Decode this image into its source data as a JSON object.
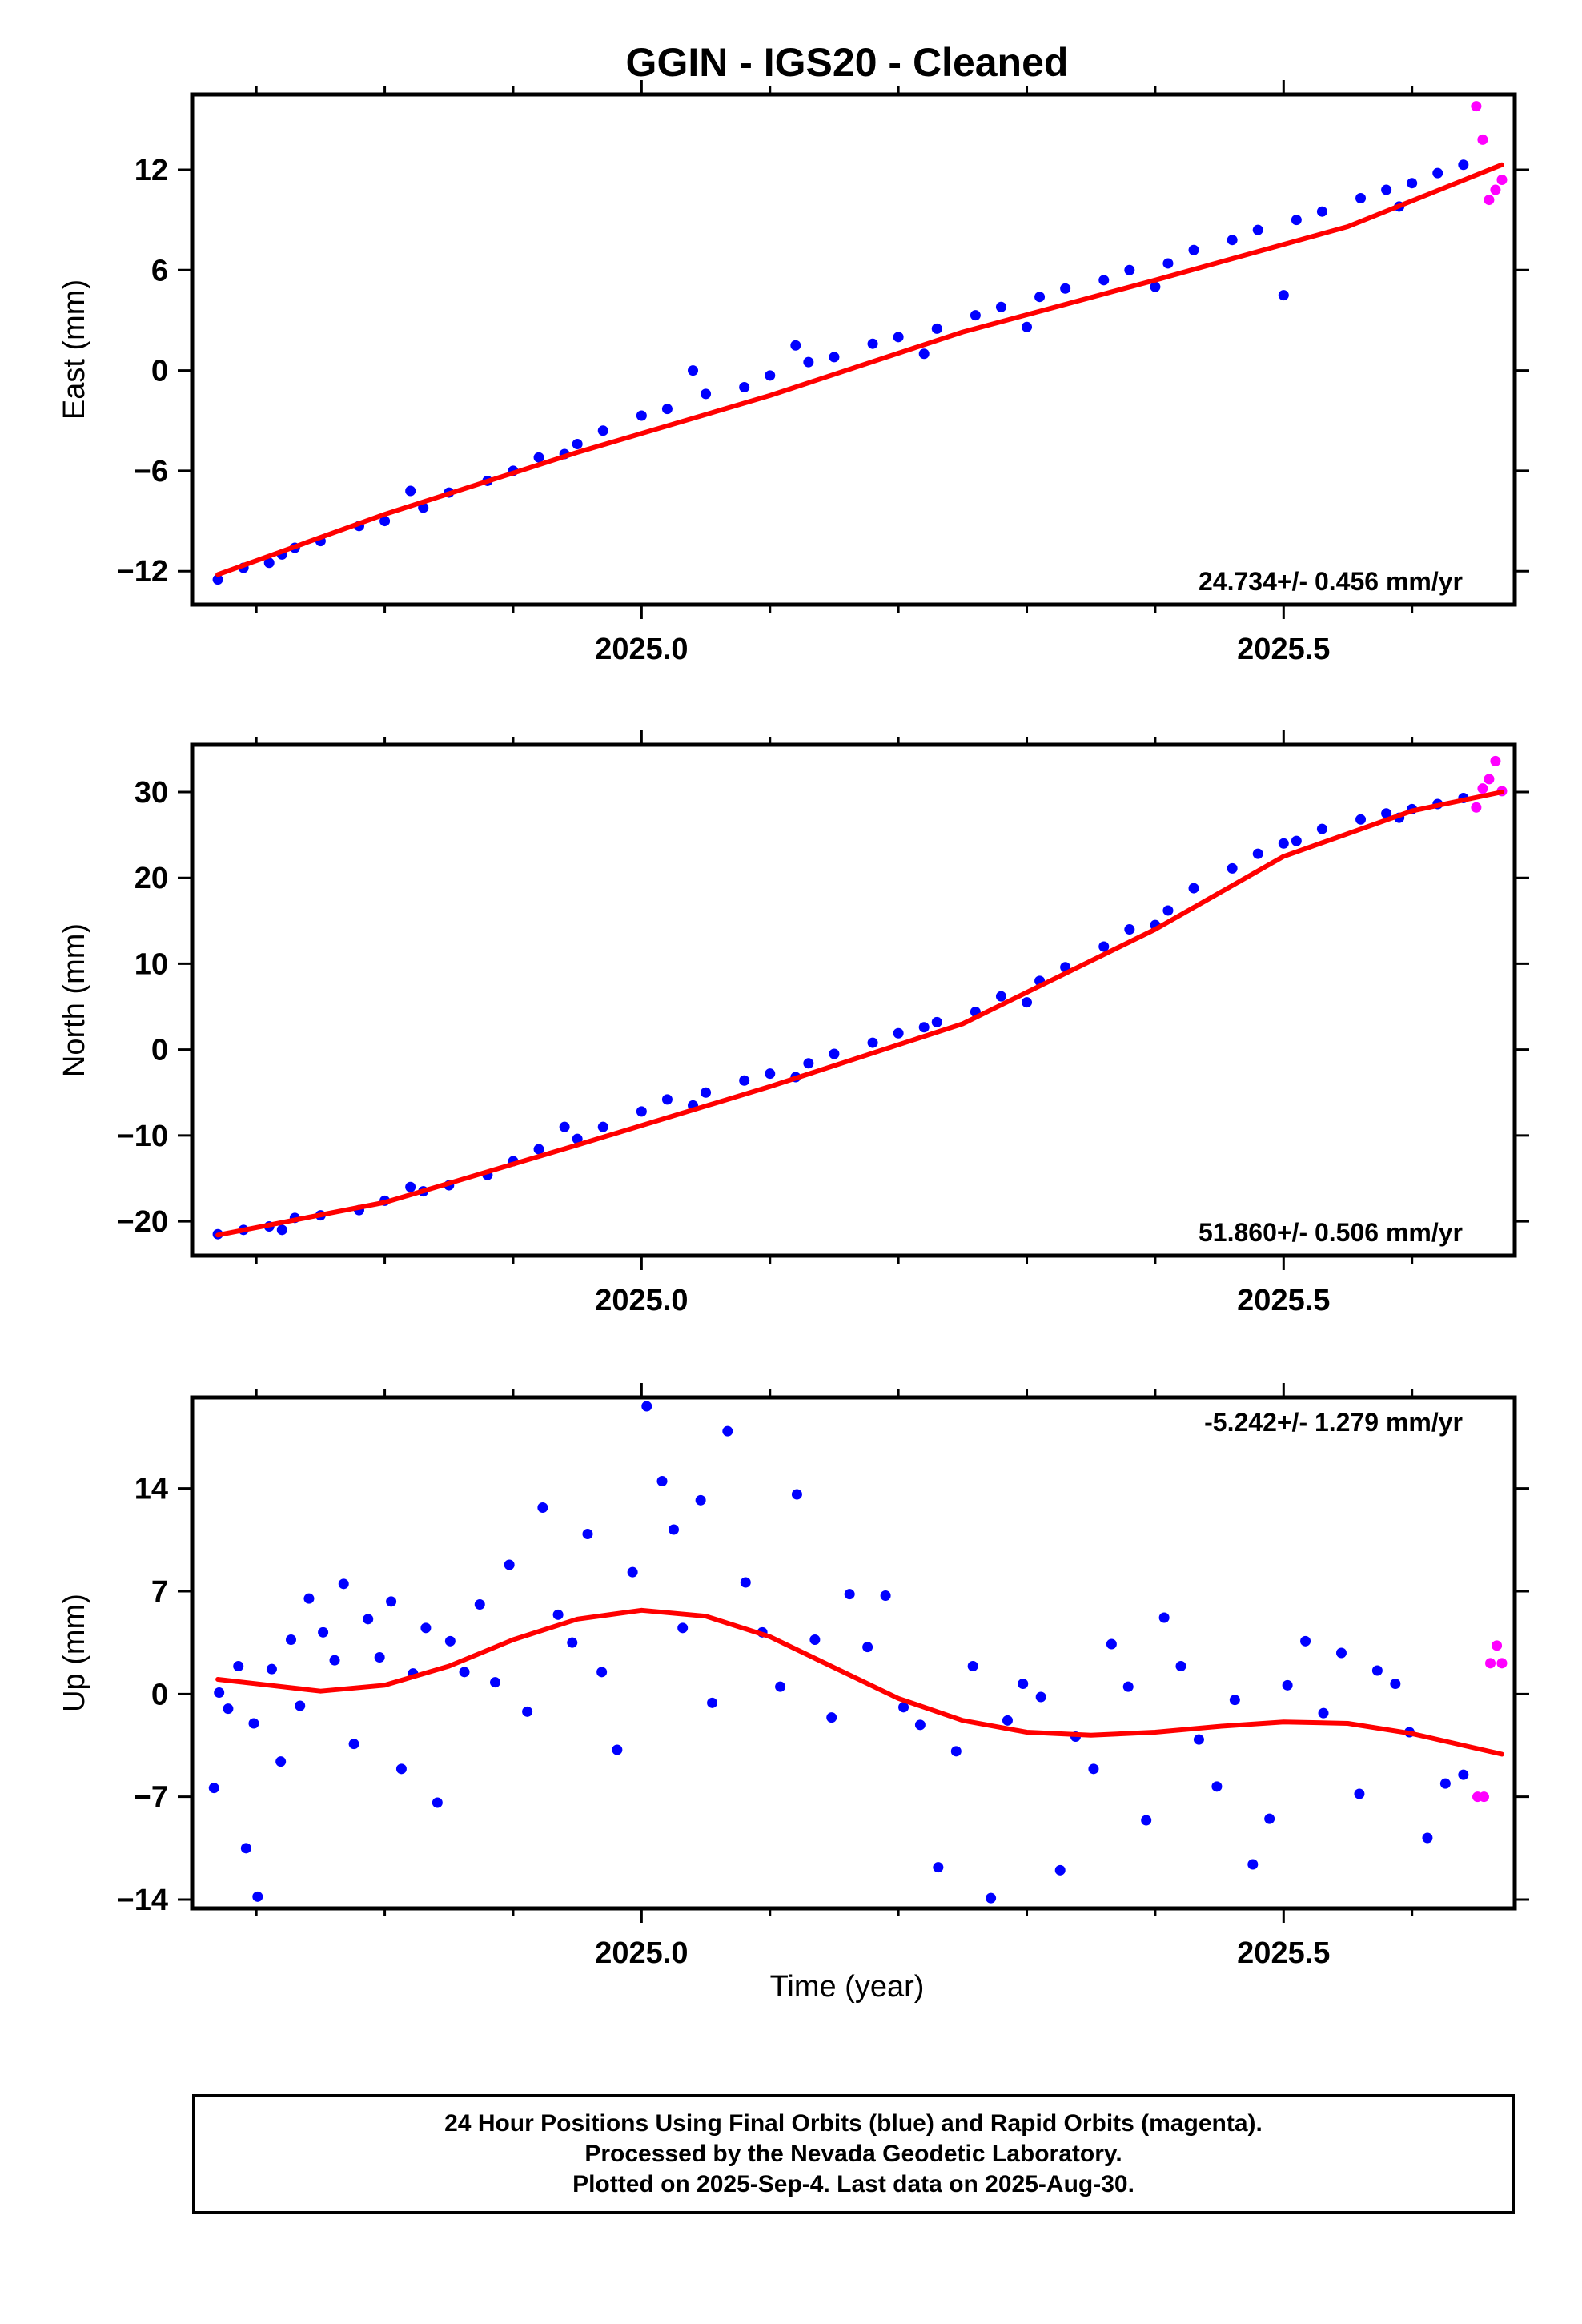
{
  "title": "GGIN  - IGS20 - Cleaned",
  "xlabel": "Time (year)",
  "footer": [
    "24 Hour Positions Using Final Orbits (blue) and Rapid Orbits (magenta).",
    "Processed by the Nevada Geodetic Laboratory.",
    "Plotted on 2025-Sep-4. Last data on 2025-Aug-30."
  ],
  "colors": {
    "final": "#0000ff",
    "rapid": "#ff00ff",
    "fit": "#ff0000"
  },
  "chart_data": [
    {
      "type": "scatter",
      "ylabel": "East (mm)",
      "xlim": [
        2024.65,
        2025.68
      ],
      "ylim": [
        -14,
        16.5
      ],
      "xticks": [
        2025.0,
        2025.5
      ],
      "yticks": [
        -12,
        -6,
        0,
        6,
        12
      ],
      "rate_label": "24.734+/- 0.456 mm/yr",
      "rate_position": "bottom-right",
      "series": [
        {
          "role": "final",
          "x": [
            2024.67,
            2024.69,
            2024.71,
            2024.73,
            2024.75,
            2024.78,
            2024.8,
            2024.83,
            2024.85,
            2024.88,
            2024.9,
            2024.92,
            2024.95,
            2024.97,
            2025.0,
            2025.02,
            2025.05,
            2025.08,
            2025.1,
            2025.13,
            2025.15,
            2025.18,
            2025.2,
            2025.23,
            2025.26,
            2025.28,
            2025.31,
            2025.33,
            2025.36,
            2025.38,
            2025.41,
            2025.43,
            2025.46,
            2025.48,
            2025.51,
            2025.53,
            2025.56,
            2025.58,
            2025.6,
            2025.62,
            2025.64,
            2024.72,
            2024.82,
            2024.94,
            2025.04,
            2025.12,
            2025.22,
            2025.3,
            2025.4,
            2025.5,
            2025.59
          ],
          "y": [
            -12.5,
            -11.8,
            -11.5,
            -10.6,
            -10.2,
            -9.3,
            -9.0,
            -8.2,
            -7.3,
            -6.6,
            -6.0,
            -5.2,
            -4.4,
            -3.6,
            -2.7,
            -2.3,
            -1.4,
            -1.0,
            -0.3,
            0.5,
            0.8,
            1.6,
            2.0,
            2.5,
            3.3,
            3.8,
            4.4,
            4.9,
            5.4,
            6.0,
            6.4,
            7.2,
            7.8,
            8.4,
            9.0,
            9.5,
            10.3,
            10.8,
            11.2,
            11.8,
            12.3,
            -11.0,
            -7.2,
            -5.0,
            0.0,
            1.5,
            1.0,
            2.6,
            5.0,
            4.5,
            9.8
          ]
        },
        {
          "role": "rapid",
          "x": [
            2025.65,
            2025.655,
            2025.66,
            2025.665,
            2025.67
          ],
          "y": [
            15.8,
            13.8,
            10.2,
            10.8,
            11.4
          ]
        }
      ],
      "fit": {
        "role": "fit",
        "x": [
          2024.67,
          2024.8,
          2024.95,
          2025.1,
          2025.25,
          2025.4,
          2025.55,
          2025.67
        ],
        "y": [
          -12.2,
          -8.6,
          -4.9,
          -1.5,
          2.3,
          5.4,
          8.6,
          12.3
        ]
      }
    },
    {
      "type": "scatter",
      "ylabel": "North (mm)",
      "xlim": [
        2024.65,
        2025.68
      ],
      "ylim": [
        -24,
        35.5
      ],
      "xticks": [
        2025.0,
        2025.5
      ],
      "yticks": [
        -20,
        -10,
        0,
        10,
        20,
        30
      ],
      "rate_label": "51.860+/- 0.506 mm/yr",
      "rate_position": "bottom-right",
      "series": [
        {
          "role": "final",
          "x": [
            2024.67,
            2024.69,
            2024.71,
            2024.73,
            2024.75,
            2024.78,
            2024.8,
            2024.83,
            2024.85,
            2024.88,
            2024.9,
            2024.92,
            2024.95,
            2024.97,
            2025.0,
            2025.02,
            2025.05,
            2025.08,
            2025.1,
            2025.13,
            2025.15,
            2025.18,
            2025.2,
            2025.23,
            2025.26,
            2025.28,
            2025.31,
            2025.33,
            2025.36,
            2025.38,
            2025.41,
            2025.43,
            2025.46,
            2025.48,
            2025.51,
            2025.53,
            2025.56,
            2025.58,
            2025.6,
            2025.62,
            2025.64,
            2024.72,
            2024.82,
            2024.94,
            2025.04,
            2025.12,
            2025.22,
            2025.3,
            2025.4,
            2025.5,
            2025.59
          ],
          "y": [
            -21.5,
            -21.0,
            -20.6,
            -19.6,
            -19.3,
            -18.7,
            -17.6,
            -16.5,
            -15.8,
            -14.6,
            -13.0,
            -11.6,
            -10.4,
            -9.0,
            -7.2,
            -5.8,
            -5.0,
            -3.6,
            -2.8,
            -1.6,
            -0.5,
            0.8,
            1.9,
            3.2,
            4.4,
            6.2,
            8.0,
            9.6,
            12.0,
            14.0,
            16.2,
            18.8,
            21.1,
            22.8,
            24.3,
            25.7,
            26.8,
            27.5,
            28.0,
            28.6,
            29.3,
            -21.0,
            -16.0,
            -9.0,
            -6.5,
            -3.2,
            2.6,
            5.5,
            14.5,
            24.0,
            27.0
          ]
        },
        {
          "role": "rapid",
          "x": [
            2025.65,
            2025.655,
            2025.66,
            2025.665,
            2025.67
          ],
          "y": [
            28.2,
            30.4,
            31.5,
            33.6,
            30.1
          ]
        }
      ],
      "fit": {
        "role": "fit",
        "x": [
          2024.67,
          2024.8,
          2024.95,
          2025.1,
          2025.25,
          2025.4,
          2025.5,
          2025.6,
          2025.67
        ],
        "y": [
          -21.6,
          -17.8,
          -11.1,
          -4.3,
          3.0,
          14.0,
          22.5,
          27.8,
          30.0
        ]
      }
    },
    {
      "type": "scatter",
      "ylabel": "Up (mm)",
      "xlim": [
        2024.65,
        2025.68
      ],
      "ylim": [
        -14.6,
        20.2
      ],
      "xticks": [
        2025.0,
        2025.5
      ],
      "yticks": [
        -14,
        -7,
        0,
        7,
        14
      ],
      "rate_label": "-5.242+/- 1.279 mm/yr",
      "rate_position": "top-right",
      "series": [
        {
          "role": "final",
          "x": [
            2024.667,
            2024.671,
            2024.678,
            2024.686,
            2024.692,
            2024.698,
            2024.701,
            2024.712,
            2024.719,
            2024.727,
            2024.734,
            2024.741,
            2024.752,
            2024.761,
            2024.768,
            2024.776,
            2024.787,
            2024.796,
            2024.805,
            2024.813,
            2024.822,
            2024.832,
            2024.841,
            2024.851,
            2024.862,
            2024.874,
            2024.886,
            2024.897,
            2024.911,
            2024.923,
            2024.935,
            2024.946,
            2024.958,
            2024.969,
            2024.981,
            2024.993,
            2025.004,
            2025.016,
            2025.025,
            2025.032,
            2025.046,
            2025.055,
            2025.067,
            2025.081,
            2025.094,
            2025.108,
            2025.121,
            2025.135,
            2025.148,
            2025.162,
            2025.176,
            2025.19,
            2025.204,
            2025.217,
            2025.231,
            2025.245,
            2025.258,
            2025.272,
            2025.285,
            2025.297,
            2025.311,
            2025.326,
            2025.338,
            2025.352,
            2025.366,
            2025.379,
            2025.393,
            2025.407,
            2025.42,
            2025.434,
            2025.448,
            2025.462,
            2025.476,
            2025.489,
            2025.503,
            2025.517,
            2025.531,
            2025.545,
            2025.559,
            2025.573,
            2025.587,
            2025.598,
            2025.612,
            2025.626,
            2025.64
          ],
          "y": [
            -6.4,
            0.1,
            -1.0,
            1.9,
            -10.5,
            -2.0,
            -13.8,
            1.7,
            -4.6,
            3.7,
            -0.8,
            6.5,
            4.2,
            2.3,
            7.5,
            -3.4,
            5.1,
            2.5,
            6.3,
            -5.1,
            1.4,
            4.5,
            -7.4,
            3.6,
            1.5,
            6.1,
            0.8,
            8.8,
            -1.2,
            12.7,
            5.4,
            3.5,
            10.9,
            1.5,
            -3.8,
            8.3,
            19.6,
            14.5,
            11.2,
            4.5,
            13.2,
            -0.6,
            17.9,
            7.6,
            4.2,
            0.5,
            13.6,
            3.7,
            -1.6,
            6.8,
            3.2,
            6.7,
            -0.9,
            -2.1,
            -11.8,
            -3.9,
            1.9,
            -13.9,
            -1.8,
            0.7,
            -0.2,
            -12.0,
            -2.9,
            -5.1,
            3.4,
            0.5,
            -8.6,
            5.2,
            1.9,
            -3.1,
            -6.3,
            -0.4,
            -11.6,
            -8.5,
            0.6,
            3.6,
            -1.3,
            2.8,
            -6.8,
            1.6,
            0.7,
            -2.6,
            -9.8,
            -6.1,
            -5.5
          ]
        },
        {
          "role": "rapid",
          "x": [
            2025.651,
            2025.656,
            2025.661,
            2025.666,
            2025.67
          ],
          "y": [
            -7.0,
            -7.0,
            2.1,
            3.3,
            2.1
          ]
        }
      ],
      "fit": {
        "role": "fit",
        "x": [
          2024.67,
          2024.71,
          2024.75,
          2024.8,
          2024.85,
          2024.9,
          2024.95,
          2025.0,
          2025.05,
          2025.1,
          2025.15,
          2025.2,
          2025.25,
          2025.3,
          2025.35,
          2025.4,
          2025.45,
          2025.5,
          2025.55,
          2025.6,
          2025.64,
          2025.67
        ],
        "y": [
          1.0,
          0.6,
          0.2,
          0.6,
          1.9,
          3.7,
          5.1,
          5.7,
          5.3,
          3.9,
          1.8,
          -0.3,
          -1.8,
          -2.6,
          -2.8,
          -2.6,
          -2.2,
          -1.9,
          -2.0,
          -2.7,
          -3.5,
          -4.1
        ]
      }
    }
  ]
}
